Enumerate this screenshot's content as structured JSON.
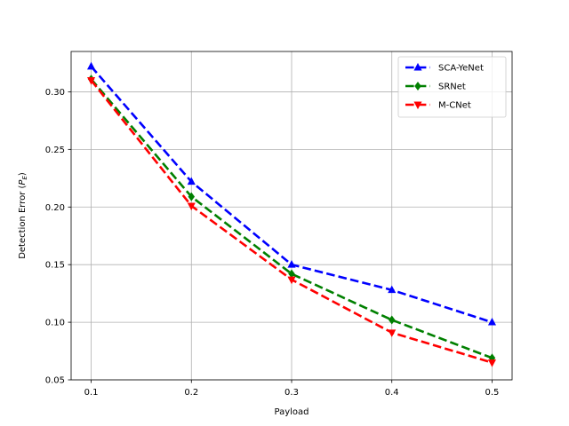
{
  "chart_data": {
    "type": "line",
    "title": "",
    "xlabel": "Payload",
    "ylabel": "Detection Error (",
    "ylabel_symbol": "P",
    "ylabel_subscript": "E",
    "ylabel_close": ")",
    "x": [
      0.1,
      0.2,
      0.3,
      0.4,
      0.5
    ],
    "xlim": [
      0.08,
      0.52
    ],
    "ylim": [
      0.05,
      0.335
    ],
    "xticks": [
      "0.1",
      "0.2",
      "0.3",
      "0.4",
      "0.5"
    ],
    "yticks": [
      "0.05",
      "0.10",
      "0.15",
      "0.20",
      "0.25",
      "0.30"
    ],
    "grid": true,
    "legend_position": "top-right",
    "series": [
      {
        "name": "SCA-YeNet",
        "color": "#0000ff",
        "marker": "triangle-up",
        "values": [
          0.322,
          0.222,
          0.15,
          0.128,
          0.1
        ]
      },
      {
        "name": "SRNet",
        "color": "#008000",
        "marker": "diamond",
        "values": [
          0.311,
          0.209,
          0.142,
          0.102,
          0.069
        ]
      },
      {
        "name": "M-CNet",
        "color": "#ff0000",
        "marker": "triangle-down",
        "values": [
          0.31,
          0.201,
          0.137,
          0.091,
          0.065
        ]
      }
    ]
  }
}
